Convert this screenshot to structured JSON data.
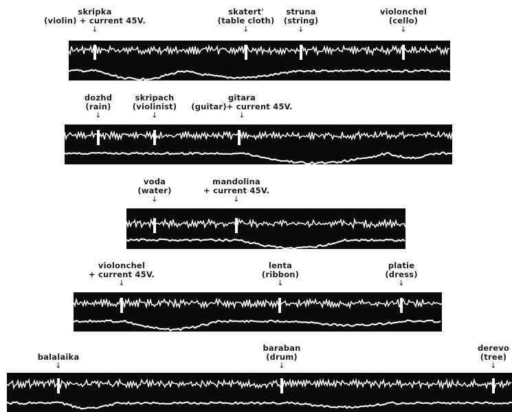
{
  "recordings": [
    {
      "labels": [
        {
          "lines": [
            "skripka",
            "(violin) + current 45V."
          ]
        },
        {
          "lines": [
            "skatert'",
            "(table cloth)"
          ]
        },
        {
          "lines": [
            "struna",
            "(string)"
          ]
        },
        {
          "lines": [
            "violonchel",
            "(cello)"
          ]
        }
      ]
    },
    {
      "labels": [
        {
          "lines": [
            "dozhd",
            "(rain)"
          ]
        },
        {
          "lines": [
            "skripach",
            "(violinist)"
          ]
        },
        {
          "lines": [
            "gitara",
            "(guitar)+ current 45V."
          ]
        }
      ]
    },
    {
      "labels": [
        {
          "lines": [
            "voda",
            "(water)"
          ]
        },
        {
          "lines": [
            "mandolina",
            "+ current 45V."
          ]
        }
      ]
    },
    {
      "labels": [
        {
          "lines": [
            "violonchel",
            "+ current 45V."
          ]
        },
        {
          "lines": [
            "lenta",
            "(ribbon)"
          ]
        },
        {
          "lines": [
            "platie",
            "(dress)"
          ]
        }
      ]
    },
    {
      "labels": [
        {
          "lines": [
            "balalaika"
          ]
        },
        {
          "lines": [
            "baraban",
            "(drum)"
          ]
        },
        {
          "lines": [
            "derevo",
            "(tree)"
          ]
        }
      ]
    }
  ],
  "arrow_glyph": "↓"
}
